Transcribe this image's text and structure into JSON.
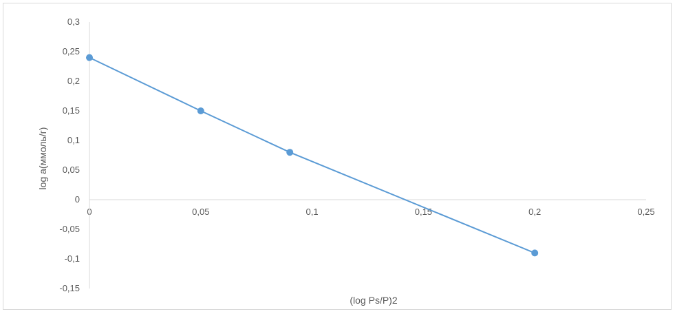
{
  "chart_data": {
    "type": "scatter",
    "title": "",
    "xlabel": "(log Ps/P)2",
    "ylabel": "log a(ммоль/г)",
    "xlim": [
      0,
      0.25
    ],
    "ylim": [
      -0.15,
      0.3
    ],
    "x_ticks": [
      "0",
      "0,05",
      "0,1",
      "0,15",
      "0,2",
      "0,25"
    ],
    "y_ticks": [
      "0,3",
      "0,25",
      "0,2",
      "0,15",
      "0,1",
      "0,05",
      "0",
      "-0,05",
      "-0,1",
      "-0,15"
    ],
    "grid": false,
    "legend": "none",
    "series": [
      {
        "x": [
          0,
          0.05,
          0.09,
          0.2
        ],
        "y": [
          0.24,
          0.15,
          0.08,
          -0.09
        ],
        "marker": "circle",
        "line": "straight",
        "color": "#5b9bd5"
      }
    ]
  }
}
